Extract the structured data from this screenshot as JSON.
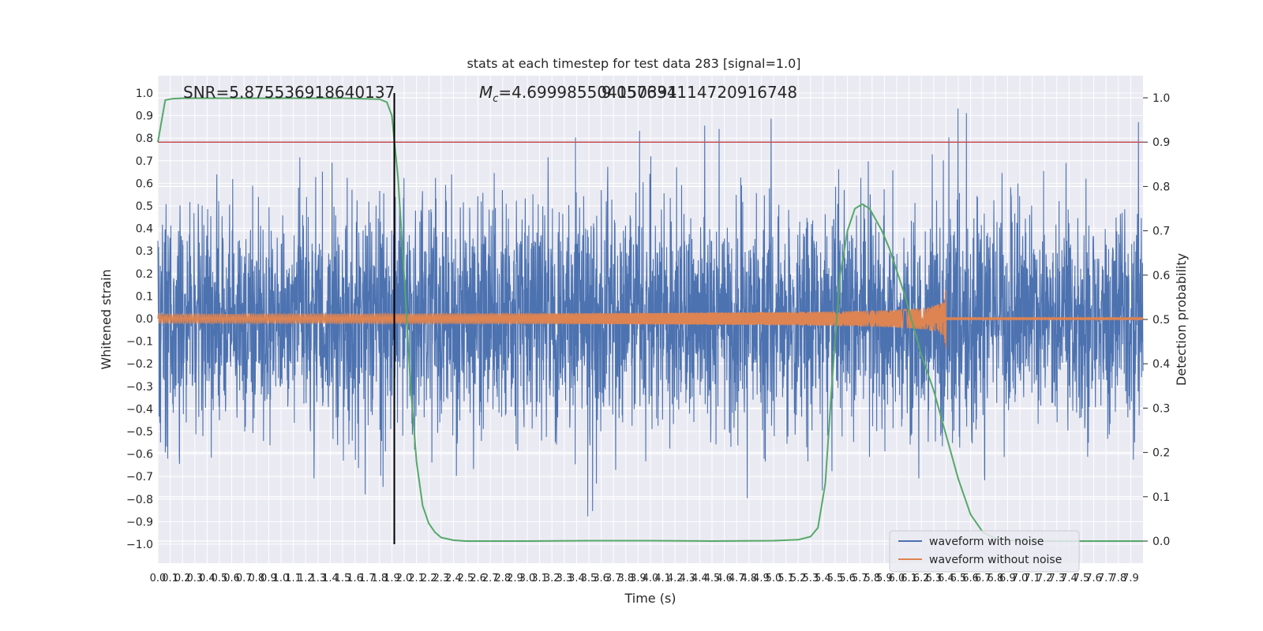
{
  "chart_data": {
    "type": "line",
    "title": "stats at each timestep for test data 283 [signal=1.0]",
    "xlabel": "Time (s)",
    "ylabel_left": "Whitened strain",
    "ylabel_right": "Detection probability",
    "xlim": [
      0,
      8.0
    ],
    "ylim_left": [
      -1.1,
      1.05
    ],
    "ylim_right": [
      0.0,
      1.0
    ],
    "x_ticks": [
      0.0,
      0.1,
      0.2,
      0.3,
      0.4,
      0.5,
      0.6,
      0.7,
      0.8,
      0.9,
      1.0,
      1.1,
      1.2,
      1.3,
      1.4,
      1.5,
      1.6,
      1.7,
      1.8,
      1.9,
      2.0,
      2.1,
      2.2,
      2.3,
      2.4,
      2.5,
      2.6,
      2.7,
      2.8,
      2.9,
      3.0,
      3.1,
      3.2,
      3.3,
      3.4,
      3.5,
      3.6,
      3.7,
      3.8,
      3.9,
      4.0,
      4.1,
      4.2,
      4.3,
      4.4,
      4.5,
      4.6,
      4.7,
      4.8,
      4.9,
      5.0,
      5.1,
      5.2,
      5.3,
      5.4,
      5.5,
      5.6,
      5.7,
      5.8,
      5.9,
      6.0,
      6.1,
      6.2,
      6.3,
      6.4,
      6.5,
      6.6,
      6.7,
      6.8,
      6.9,
      7.0,
      7.1,
      7.2,
      7.3,
      7.4,
      7.5,
      7.6,
      7.7,
      7.8,
      7.9
    ],
    "x_tick_labels": [
      "0.0",
      "0.1",
      "0.2",
      "0.3",
      "0.4",
      "0.5",
      "0.6",
      "0.7",
      "0.8",
      "0.9",
      "1.0",
      "1.1",
      "1.2",
      "1.3",
      "1.4",
      "1.5",
      "1.6",
      "1.7",
      "1.8",
      "1.9",
      "2.0",
      "2.1",
      "2.2",
      "2.3",
      "2.4",
      "2.5",
      "2.6",
      "2.7",
      "2.8",
      "2.9",
      "3.0",
      "3.1",
      "3.2",
      "3.3",
      "3.4",
      "3.5",
      "3.6",
      "3.7",
      "3.8",
      "3.9",
      "4.0",
      "4.1",
      "4.2",
      "4.3",
      "4.4",
      "4.5",
      "4.6",
      "4.7",
      "4.8",
      "4.9",
      "5.0",
      "5.1",
      "5.2",
      "5.3",
      "5.4",
      "5.5",
      "5.6",
      "5.7",
      "5.8",
      "5.9",
      "6.0",
      "6.1",
      "6.2",
      "6.3",
      "6.4",
      "6.5",
      "6.6",
      "6.7",
      "6.8",
      "6.9",
      "7.0",
      "7.1",
      "7.2",
      "7.3",
      "7.4",
      "7.5",
      "7.6",
      "7.7",
      "7.8",
      "7.9"
    ],
    "y_left_ticks": [
      1.0,
      0.9,
      0.8,
      0.7,
      0.6,
      0.5,
      0.4,
      0.3,
      0.2,
      0.1,
      0.0,
      -0.1,
      -0.2,
      -0.3,
      -0.4,
      -0.5,
      -0.6,
      -0.7,
      -0.8,
      -0.9,
      -1.0
    ],
    "y_left_tick_labels": [
      "1.0",
      "0.9",
      "0.8",
      "0.7",
      "0.6",
      "0.5",
      "0.4",
      "0.3",
      "0.2",
      "0.1",
      "0.0",
      "−0.1",
      "−0.2",
      "−0.3",
      "−0.4",
      "−0.5",
      "−0.6",
      "−0.7",
      "−0.8",
      "−0.9",
      "−1.0"
    ],
    "y_right_ticks": [
      1.0,
      0.9,
      0.8,
      0.7,
      0.6,
      0.5,
      0.4,
      0.3,
      0.2,
      0.1,
      0.0
    ],
    "y_right_tick_labels": [
      "1.0",
      "0.9",
      "0.8",
      "0.7",
      "0.6",
      "0.5",
      "0.4",
      "0.3",
      "0.2",
      "0.1",
      "0.0"
    ],
    "annotations": {
      "snr": "SNR=5.875536918640137",
      "mc_symbol": "M",
      "mc_subscript": "c",
      "mc_value": "=4.699985504150391",
      "overlap": "9.057634114720916748"
    },
    "threshold": {
      "y_right": 0.9,
      "color": "#c44e52"
    },
    "marker_line": {
      "x": 1.92,
      "y_left_range": [
        -1.0,
        1.0
      ],
      "color": "#000000"
    },
    "series": [
      {
        "name": "waveform with noise",
        "color": "#4c72b0",
        "axis": "left",
        "kind": "noise",
        "sigma": 0.25,
        "max_abs": 0.98,
        "samples": 4096
      },
      {
        "name": "waveform without noise",
        "color": "#dd8452",
        "axis": "left",
        "kind": "chirp",
        "coalescence_time": 6.4,
        "amp_start": 0.02,
        "amp_peak": 0.16,
        "post_merger_amp": 0.004
      },
      {
        "name": "",
        "color": "#55a868",
        "axis": "right",
        "kind": "probability",
        "x": [
          0.0,
          0.06,
          0.12,
          0.2,
          0.3,
          0.5,
          1.0,
          1.5,
          1.8,
          1.86,
          1.9,
          1.95,
          2.0,
          2.05,
          2.1,
          2.15,
          2.2,
          2.25,
          2.3,
          2.4,
          2.5,
          2.6,
          3.0,
          3.5,
          4.0,
          4.5,
          5.0,
          5.2,
          5.3,
          5.36,
          5.42,
          5.48,
          5.54,
          5.6,
          5.66,
          5.72,
          5.78,
          5.82,
          5.88,
          5.94,
          6.0,
          6.06,
          6.12,
          6.2,
          6.3,
          6.4,
          6.5,
          6.6,
          6.7,
          6.8,
          6.9,
          7.0,
          7.5,
          8.0
        ],
        "y": [
          0.9,
          0.995,
          0.998,
          0.999,
          0.999,
          0.999,
          0.999,
          0.999,
          0.997,
          0.99,
          0.96,
          0.82,
          0.6,
          0.36,
          0.18,
          0.08,
          0.04,
          0.02,
          0.008,
          0.002,
          0.0,
          0.0,
          0.0,
          0.001,
          0.001,
          0.0,
          0.001,
          0.003,
          0.01,
          0.03,
          0.13,
          0.38,
          0.6,
          0.7,
          0.75,
          0.76,
          0.75,
          0.73,
          0.7,
          0.66,
          0.61,
          0.56,
          0.5,
          0.42,
          0.34,
          0.24,
          0.14,
          0.06,
          0.02,
          0.006,
          0.002,
          0.0,
          0.0,
          0.0
        ]
      }
    ],
    "legend": {
      "placement": "lower-right",
      "entries": [
        "waveform with noise",
        "waveform without noise"
      ]
    },
    "grid": true
  }
}
